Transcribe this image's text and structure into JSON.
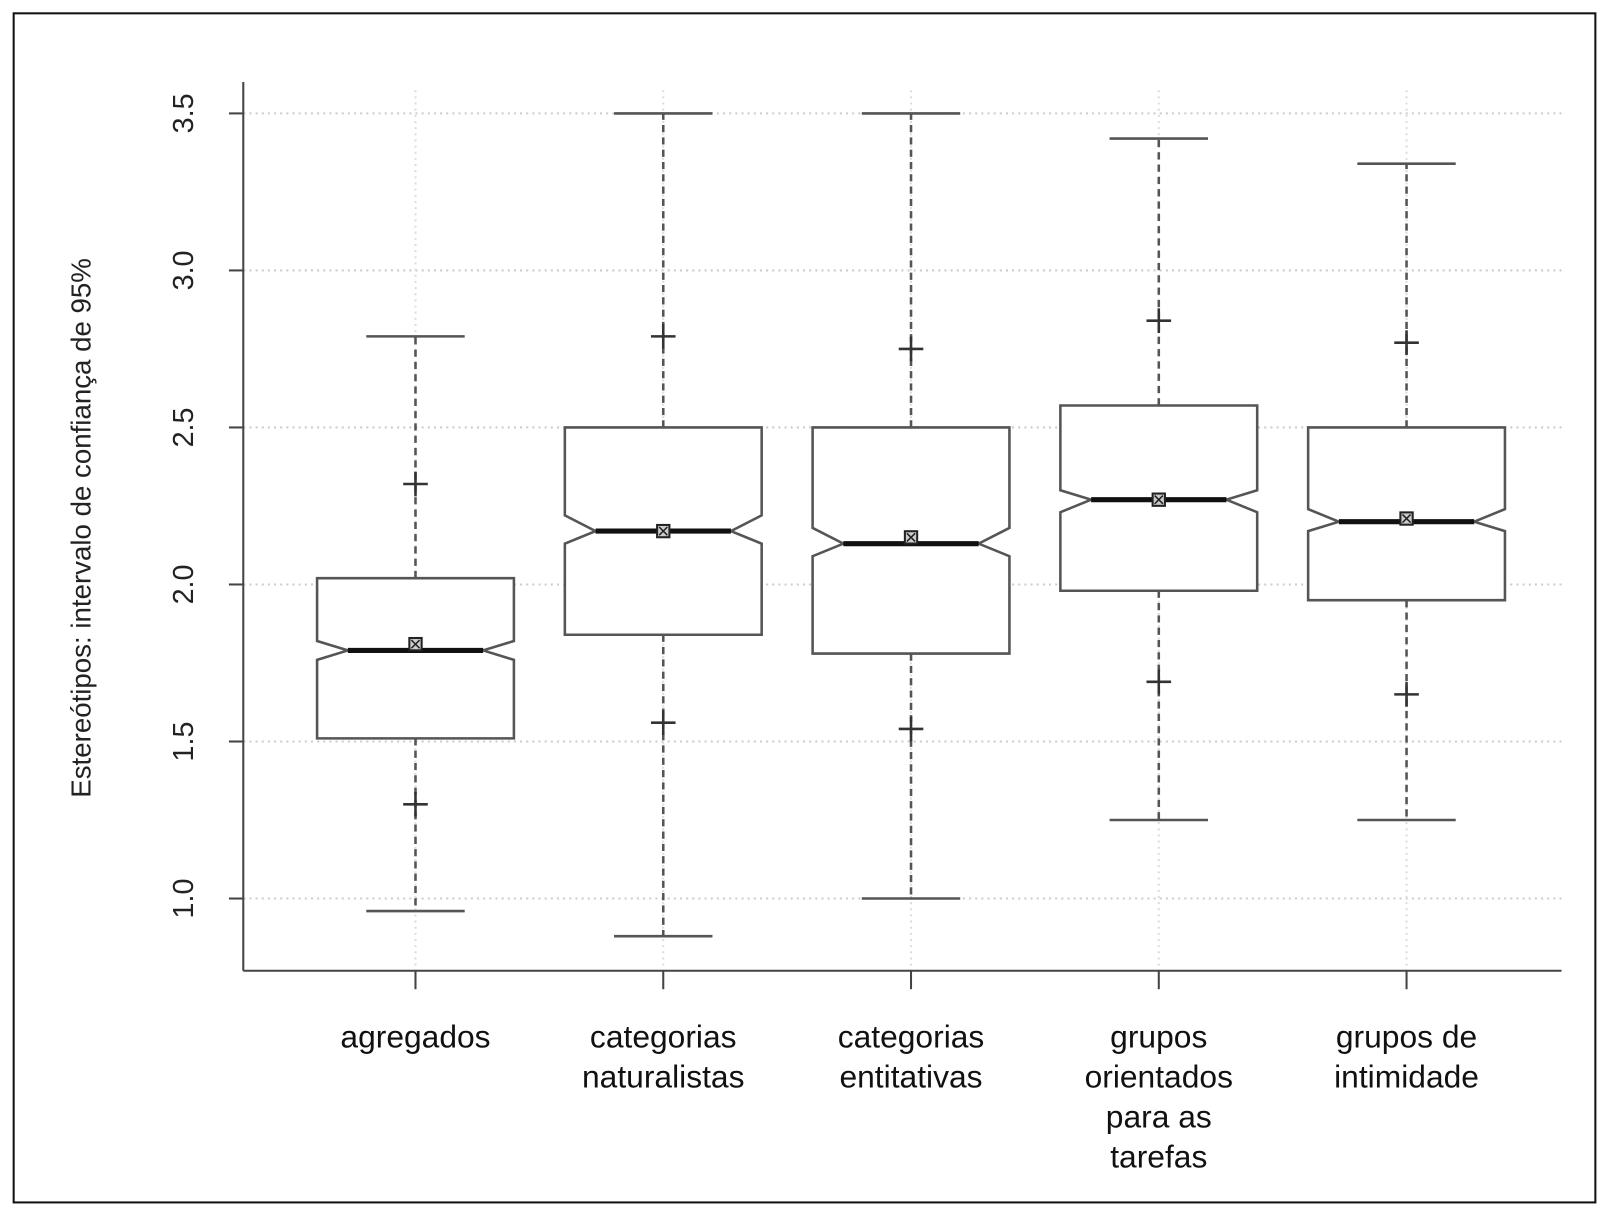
{
  "chart_data": {
    "type": "boxplot",
    "ylabel": "Estereótipos: intervalo de confiança de 95%",
    "categories": [
      "agregados",
      "categorias naturalistas",
      "categorias entitativas",
      "grupos orientados para as tarefas",
      "grupos de intimidade"
    ],
    "boxes": [
      {
        "whisker_low": 0.96,
        "q1": 1.51,
        "notch_low": 1.76,
        "median": 1.79,
        "notch_high": 1.82,
        "q3": 2.02,
        "whisker_high": 2.79,
        "mean": 1.81,
        "ci_low": 1.3,
        "ci_high": 2.32
      },
      {
        "whisker_low": 0.88,
        "q1": 1.84,
        "notch_low": 2.13,
        "median": 2.17,
        "notch_high": 2.22,
        "q3": 2.5,
        "whisker_high": 3.5,
        "mean": 2.17,
        "ci_low": 1.56,
        "ci_high": 2.79
      },
      {
        "whisker_low": 1.0,
        "q1": 1.78,
        "notch_low": 2.09,
        "median": 2.13,
        "notch_high": 2.18,
        "q3": 2.5,
        "whisker_high": 3.5,
        "mean": 2.15,
        "ci_low": 1.54,
        "ci_high": 2.75
      },
      {
        "whisker_low": 1.25,
        "q1": 1.98,
        "notch_low": 2.23,
        "median": 2.27,
        "notch_high": 2.3,
        "q3": 2.57,
        "whisker_high": 3.42,
        "mean": 2.27,
        "ci_low": 1.69,
        "ci_high": 2.84
      },
      {
        "whisker_low": 1.25,
        "q1": 1.95,
        "notch_low": 2.17,
        "median": 2.2,
        "notch_high": 2.24,
        "q3": 2.5,
        "whisker_high": 3.34,
        "mean": 2.21,
        "ci_low": 1.65,
        "ci_high": 2.77
      }
    ],
    "ylim": [
      0.77,
      3.6
    ],
    "yticks": [
      {
        "value": 1,
        "label": "1.0"
      },
      1.5,
      {
        "value": 2,
        "label": "2.0"
      },
      2.5,
      {
        "value": 3,
        "label": "3.0"
      },
      3.5
    ],
    "grid": true,
    "color": "#555555"
  }
}
